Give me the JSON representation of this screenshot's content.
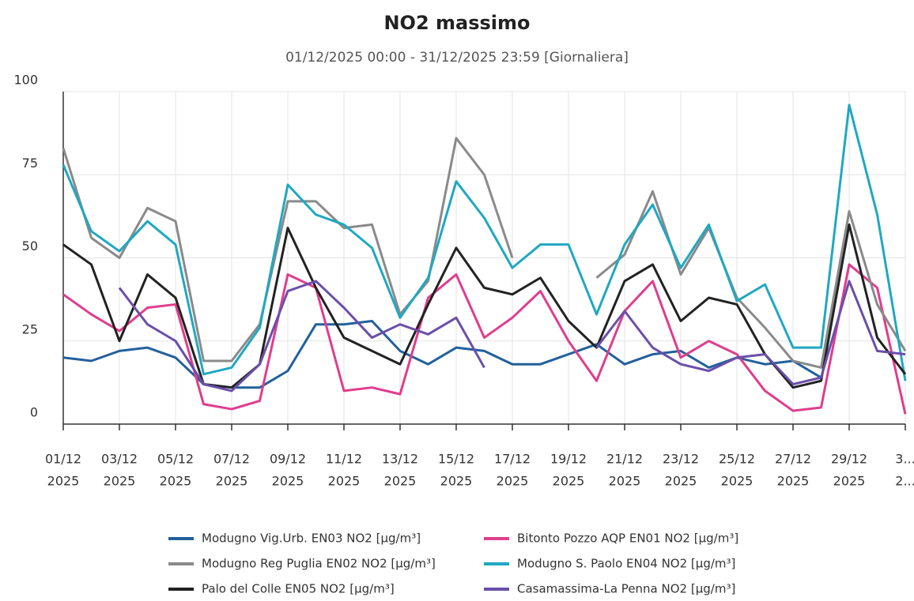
{
  "chart_data": {
    "type": "line",
    "title": "NO2 massimo",
    "subtitle": "01/12/2025 00:00 - 31/12/2025 23:59 [Giornaliera]",
    "categories": [
      [
        "01/12",
        "2025"
      ],
      null,
      [
        "03/12",
        "2025"
      ],
      null,
      [
        "05/12",
        "2025"
      ],
      null,
      [
        "07/12",
        "2025"
      ],
      null,
      [
        "09/12",
        "2025"
      ],
      null,
      [
        "11/12",
        "2025"
      ],
      null,
      [
        "13/12",
        "2025"
      ],
      null,
      [
        "15/12",
        "2025"
      ],
      null,
      [
        "17/12",
        "2025"
      ],
      null,
      [
        "19/12",
        "2025"
      ],
      null,
      [
        "21/12",
        "2025"
      ],
      null,
      [
        "23/12",
        "2025"
      ],
      null,
      [
        "25/12",
        "2025"
      ],
      null,
      [
        "27/12",
        "2025"
      ],
      null,
      [
        "29/12",
        "2025"
      ],
      null,
      [
        "3...",
        "2..."
      ]
    ],
    "ylim": [
      0,
      100
    ],
    "yticks": [
      0,
      25,
      50,
      75,
      100
    ],
    "grid": true,
    "series": [
      {
        "name": "Modugno Vig.Urb. EN03 NO2 [µg/m³]",
        "color": "#22609c",
        "values": [
          20,
          19,
          22,
          23,
          20,
          12,
          11,
          11,
          16,
          30,
          30,
          31,
          22,
          18,
          23,
          22,
          18,
          18,
          21,
          24,
          18,
          21,
          22,
          17,
          20,
          18,
          19,
          14,
          null,
          null,
          null
        ]
      },
      {
        "name": "Bitonto Pozzo AQP EN01 NO2 [µg/m³]",
        "color": "#e03d8d",
        "values": [
          39,
          33,
          28,
          35,
          36,
          6,
          4.5,
          7,
          45,
          41,
          10,
          11,
          9,
          38,
          45,
          26,
          32,
          40,
          25,
          13,
          34,
          43,
          20,
          25,
          21,
          10,
          4,
          5,
          48,
          41,
          3
        ]
      },
      {
        "name": "Modugno Reg Puglia EN02 NO2 [µg/m³]",
        "color": "#8a8a8a",
        "values": [
          83,
          56,
          50,
          65,
          61,
          19,
          19,
          30,
          67,
          67,
          59,
          60,
          33,
          43,
          86,
          75,
          50,
          null,
          null,
          44,
          51,
          70,
          45,
          59,
          38,
          29,
          19,
          17,
          64,
          36,
          22
        ]
      },
      {
        "name": "Modugno S. Paolo EN04 NO2 [µg/m³]",
        "color": "#1fa8c2",
        "values": [
          78,
          58,
          52,
          61,
          54,
          15,
          17,
          29,
          72,
          63,
          60,
          53,
          32,
          44,
          73,
          62,
          47,
          54,
          54,
          33,
          54,
          66,
          47,
          60,
          37,
          42,
          23,
          23,
          96,
          63,
          13
        ]
      },
      {
        "name": "Palo del Colle EN05 NO2 [µg/m³]",
        "color": "#222222",
        "values": [
          54,
          48,
          25,
          45,
          38,
          12,
          11,
          18,
          59,
          41,
          26,
          22,
          18,
          36,
          53,
          41,
          39,
          44,
          31,
          23,
          43,
          48,
          31,
          38,
          36,
          21,
          11,
          13,
          60,
          26,
          15
        ]
      },
      {
        "name": "Casamassima-La Penna NO2 [µg/m³]",
        "color": "#6a4faa",
        "values": [
          null,
          null,
          41,
          30,
          25,
          12,
          10,
          18,
          40,
          43,
          35,
          26,
          30,
          27,
          32,
          17,
          null,
          null,
          null,
          23,
          34,
          23,
          18,
          16,
          20,
          21,
          12,
          14,
          43,
          22,
          21
        ]
      }
    ]
  }
}
